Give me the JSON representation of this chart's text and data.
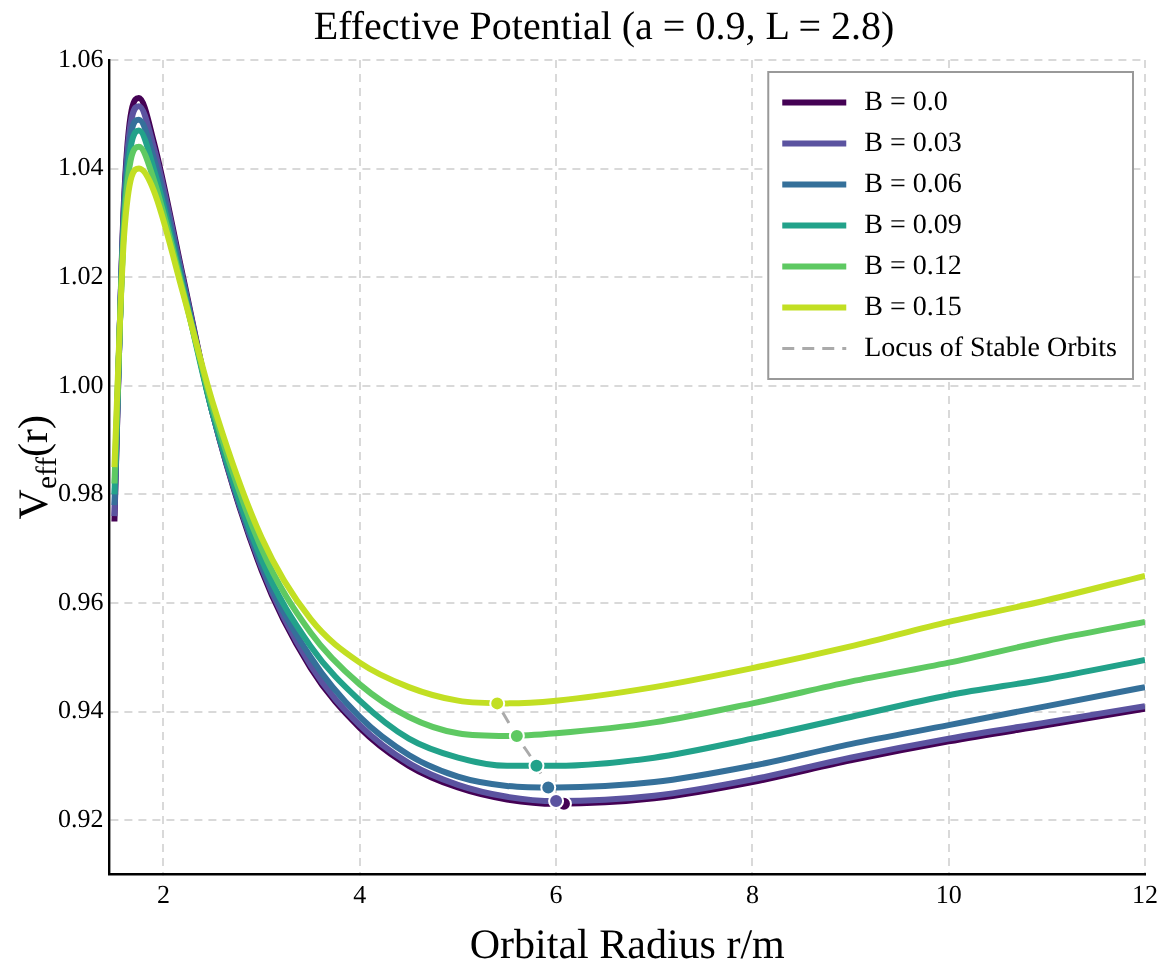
{
  "chart_data": {
    "type": "line",
    "title": "Effective Potential (a = 0.9, L = 2.8)",
    "xlabel": "Orbital Radius r/m",
    "ylabel": "V$_{eff}$(r)",
    "x": [
      1.5,
      1.6,
      1.75,
      1.9,
      2.2,
      2.5,
      3,
      3.5,
      4,
      4.5,
      5,
      5.5,
      6,
      7,
      8,
      9,
      10,
      11,
      12
    ],
    "series": [
      {
        "name": "B = 0.0",
        "color": "#440154",
        "values": [
          0.975,
          1.035,
          1.053,
          1.045,
          1.02,
          0.995,
          0.966,
          0.948,
          0.937,
          0.93,
          0.926,
          0.9238,
          0.923,
          0.924,
          0.927,
          0.931,
          0.9345,
          0.9375,
          0.9405
        ]
      },
      {
        "name": "B = 0.03",
        "color": "#5b53a0",
        "values": [
          0.976,
          1.034,
          1.0515,
          1.044,
          1.0195,
          0.995,
          0.9665,
          0.9485,
          0.9375,
          0.9305,
          0.9265,
          0.9243,
          0.9235,
          0.9245,
          0.9275,
          0.9315,
          0.935,
          0.938,
          0.941
        ]
      },
      {
        "name": "B = 0.06",
        "color": "#35709a",
        "values": [
          0.978,
          1.033,
          1.049,
          1.042,
          1.019,
          0.995,
          0.967,
          0.95,
          0.939,
          0.932,
          0.928,
          0.9263,
          0.926,
          0.927,
          0.93,
          0.934,
          0.9375,
          0.941,
          0.9445
        ]
      },
      {
        "name": "B = 0.09",
        "color": "#22a28a",
        "values": [
          0.98,
          1.031,
          1.047,
          1.04,
          1.018,
          0.995,
          0.968,
          0.952,
          0.942,
          0.935,
          0.9315,
          0.93,
          0.93,
          0.9315,
          0.935,
          0.939,
          0.943,
          0.946,
          0.9495
        ]
      },
      {
        "name": "B = 0.12",
        "color": "#5ec962",
        "values": [
          0.982,
          1.03,
          1.044,
          1.038,
          1.0175,
          0.996,
          0.97,
          0.9545,
          0.945,
          0.939,
          0.936,
          0.9355,
          0.936,
          0.938,
          0.9415,
          0.9455,
          0.949,
          0.953,
          0.9565
        ]
      },
      {
        "name": "B = 0.15",
        "color": "#c2df23",
        "values": [
          0.985,
          1.028,
          1.04,
          1.036,
          1.017,
          0.997,
          0.972,
          0.957,
          0.949,
          0.9445,
          0.942,
          0.9415,
          0.942,
          0.9445,
          0.948,
          0.952,
          0.9565,
          0.9605,
          0.965
        ]
      },
      {
        "name": "Locus of Stable Orbits",
        "color": "#aaaaaa",
        "line_style": "dashed",
        "marker": "circle",
        "x": [
          6.08,
          6.0,
          5.92,
          5.8,
          5.6,
          5.4
        ],
        "values": [
          0.923,
          0.9235,
          0.926,
          0.93,
          0.9355,
          0.9415
        ],
        "colors": [
          "#440154",
          "#5b53a0",
          "#35709a",
          "#22a28a",
          "#5ec962",
          "#c2df23"
        ]
      }
    ],
    "xlim": [
      1.45,
      12
    ],
    "xticks": [
      2,
      4,
      6,
      8,
      10,
      12
    ],
    "ylim": [
      0.91,
      1.06
    ],
    "yticks": [
      {
        "value": 0.92,
        "label": "0.92"
      },
      {
        "value": 0.94,
        "label": "0.94"
      },
      {
        "value": 0.96,
        "label": "0.96"
      },
      {
        "value": 0.98,
        "label": "0.98"
      },
      {
        "value": 1,
        "label": "1.00"
      },
      {
        "value": 1.02,
        "label": "1.02"
      },
      {
        "value": 1.04,
        "label": "1.04"
      },
      {
        "value": 1.06,
        "label": "1.06"
      }
    ],
    "grid": true,
    "legend": "top right",
    "marker": "none",
    "line_style": "solid"
  }
}
